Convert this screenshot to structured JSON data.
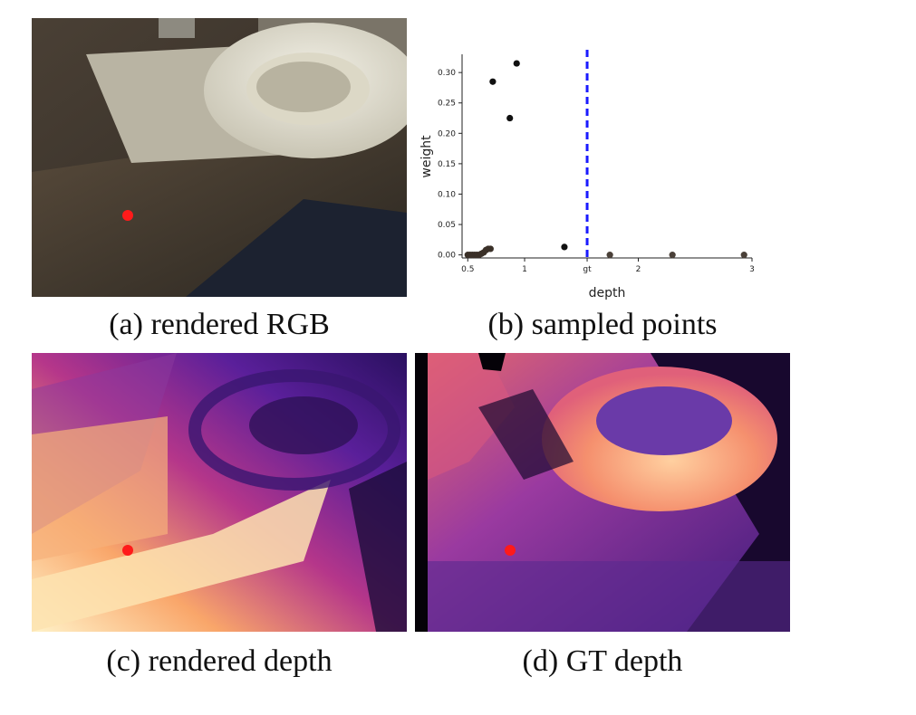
{
  "captions": {
    "a": "(a) rendered RGB",
    "b": "(b) sampled points",
    "c": "(c) rendered depth",
    "d": "(d) GT depth"
  },
  "colors": {
    "marker": "#ff1a1a",
    "gt_line": "#1a1aff",
    "points": "#111111"
  },
  "chart_data": {
    "type": "scatter",
    "xlabel": "depth",
    "ylabel": "weight",
    "xticks": [
      "0.5",
      "1",
      "gt",
      "2",
      "3"
    ],
    "xtick_values": [
      0.5,
      1,
      1.55,
      2,
      3
    ],
    "yticks": [
      "0.00",
      "0.05",
      "0.10",
      "0.15",
      "0.20",
      "0.25",
      "0.30"
    ],
    "xlim": [
      0.45,
      3.0
    ],
    "ylim": [
      -0.005,
      0.33
    ],
    "gt_depth": 1.55,
    "grid": false,
    "points": [
      {
        "x": 0.5,
        "y": 0.0
      },
      {
        "x": 0.52,
        "y": 0.0
      },
      {
        "x": 0.54,
        "y": 0.0
      },
      {
        "x": 0.56,
        "y": 0.0
      },
      {
        "x": 0.58,
        "y": 0.0
      },
      {
        "x": 0.6,
        "y": 0.0
      },
      {
        "x": 0.62,
        "y": 0.002
      },
      {
        "x": 0.64,
        "y": 0.004
      },
      {
        "x": 0.66,
        "y": 0.008
      },
      {
        "x": 0.68,
        "y": 0.01
      },
      {
        "x": 0.7,
        "y": 0.01
      },
      {
        "x": 0.72,
        "y": 0.285
      },
      {
        "x": 0.87,
        "y": 0.225
      },
      {
        "x": 0.93,
        "y": 0.315
      },
      {
        "x": 1.35,
        "y": 0.013
      },
      {
        "x": 1.75,
        "y": 0.0
      },
      {
        "x": 2.3,
        "y": 0.0
      },
      {
        "x": 2.93,
        "y": 0.0
      }
    ]
  }
}
